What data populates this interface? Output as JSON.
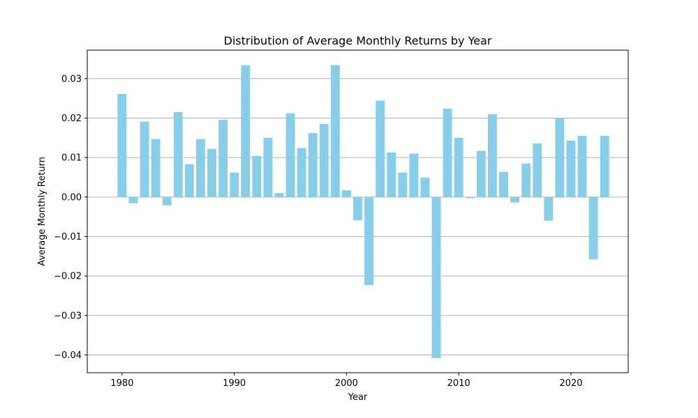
{
  "chart_data": {
    "type": "bar",
    "title": "Distribution of Average Monthly Returns by Year",
    "xlabel": "Year",
    "ylabel": "Average Monthly Return",
    "xlim": [
      1976.9,
      2025.1
    ],
    "ylim": [
      -0.0445,
      0.0372
    ],
    "xticks": [
      1980,
      1990,
      2000,
      2010,
      2020
    ],
    "yticks": [
      -0.04,
      -0.03,
      -0.02,
      -0.01,
      0.0,
      0.01,
      0.02,
      0.03
    ],
    "ytick_labels": [
      "−0.04",
      "−0.03",
      "−0.02",
      "−0.01",
      "0.00",
      "0.01",
      "0.02",
      "0.03"
    ],
    "grid": "y",
    "bar_color": "#87ceeb",
    "categories": [
      1980,
      1981,
      1982,
      1983,
      1984,
      1985,
      1986,
      1987,
      1988,
      1989,
      1990,
      1991,
      1992,
      1993,
      1994,
      1995,
      1996,
      1997,
      1998,
      1999,
      2000,
      2001,
      2002,
      2003,
      2004,
      2005,
      2006,
      2007,
      2008,
      2009,
      2010,
      2011,
      2012,
      2013,
      2014,
      2015,
      2016,
      2017,
      2018,
      2019,
      2020,
      2021,
      2022,
      2023
    ],
    "values": [
      0.0261,
      -0.0016,
      0.0191,
      0.0147,
      -0.0021,
      0.0215,
      0.0083,
      0.0147,
      0.0122,
      0.0196,
      0.0062,
      0.0334,
      0.0104,
      0.015,
      0.001,
      0.0212,
      0.0124,
      0.0162,
      0.0185,
      0.0334,
      0.0017,
      -0.0059,
      -0.0223,
      0.0244,
      0.0113,
      0.0062,
      0.011,
      0.0049,
      -0.0408,
      0.0224,
      0.015,
      -0.0003,
      0.0117,
      0.021,
      0.0064,
      -0.0014,
      0.0085,
      0.0136,
      -0.006,
      0.0201,
      0.0143,
      0.0155,
      -0.0158,
      0.0155
    ]
  }
}
